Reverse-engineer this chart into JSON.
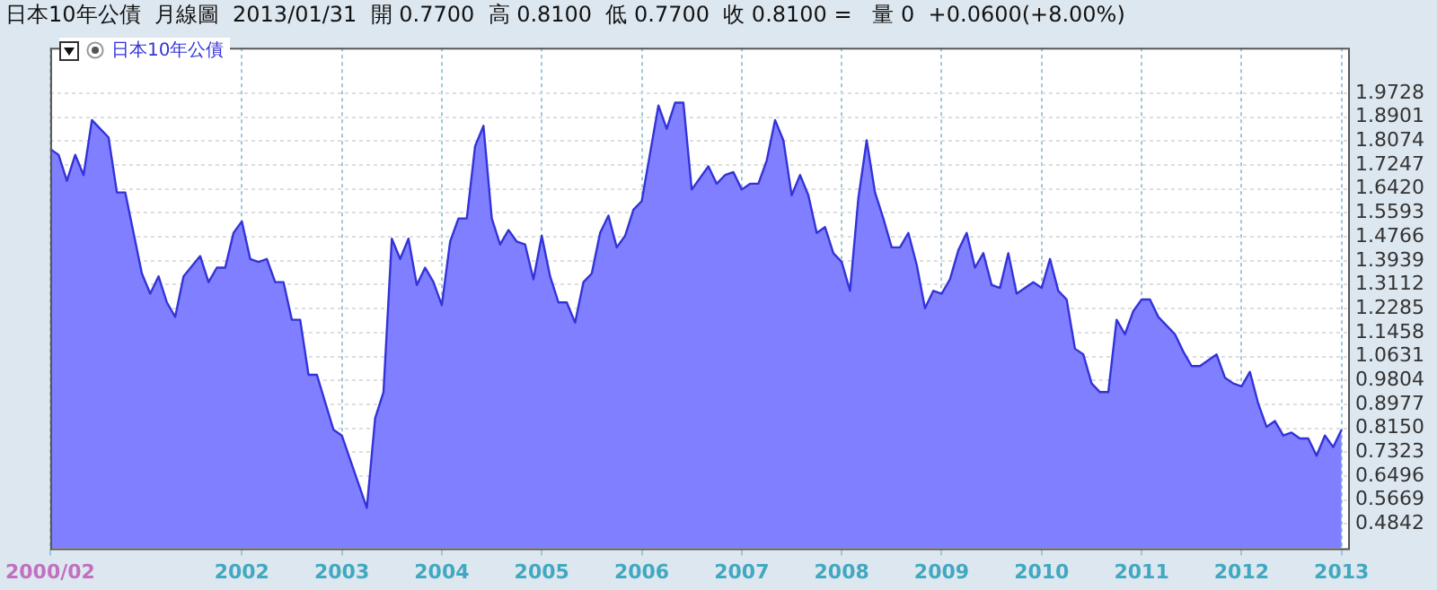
{
  "chart_data": {
    "type": "area",
    "title": "日本10年公債  月線圖  2013/01/31  開 0.7700  高 0.8100  低 0.7700  收 0.8100 =   量 0  +0.0600(+8.00%)",
    "x": [
      "2000-02",
      "2000-03",
      "2000-04",
      "2000-05",
      "2000-06",
      "2000-07",
      "2000-08",
      "2000-09",
      "2000-10",
      "2000-11",
      "2001-01",
      "2001-02",
      "2001-03",
      "2001-04",
      "2001-05",
      "2001-06",
      "2001-08",
      "2001-09",
      "2001-10",
      "2001-11",
      "2001-12",
      "2002-01",
      "2002-02",
      "2002-03",
      "2002-04",
      "2002-05",
      "2002-06",
      "2002-07",
      "2002-08",
      "2002-09",
      "2002-10",
      "2002-12",
      "2003-01",
      "2003-04",
      "2003-05",
      "2003-06",
      "2003-07",
      "2003-08",
      "2003-09",
      "2003-10",
      "2003-11",
      "2003-12",
      "2004-01",
      "2004-02",
      "2004-03",
      "2004-04",
      "2004-05",
      "2004-06",
      "2004-07",
      "2004-08",
      "2004-09",
      "2004-10",
      "2004-11",
      "2004-12",
      "2005-01",
      "2005-02",
      "2005-03",
      "2005-04",
      "2005-05",
      "2005-06",
      "2005-07",
      "2005-08",
      "2005-09",
      "2005-10",
      "2005-11",
      "2005-12",
      "2006-01",
      "2006-03",
      "2006-04",
      "2006-05",
      "2006-06",
      "2006-07",
      "2006-09",
      "2006-10",
      "2006-11",
      "2006-12",
      "2007-01",
      "2007-02",
      "2007-03",
      "2007-04",
      "2007-05",
      "2007-06",
      "2007-07",
      "2007-08",
      "2007-09",
      "2007-10",
      "2007-11",
      "2007-12",
      "2008-01",
      "2008-02",
      "2008-03",
      "2008-04",
      "2008-05",
      "2008-06",
      "2008-07",
      "2008-08",
      "2008-09",
      "2008-10",
      "2008-11",
      "2008-12",
      "2009-01",
      "2009-02",
      "2009-03",
      "2009-04",
      "2009-05",
      "2009-06",
      "2009-07",
      "2009-08",
      "2009-09",
      "2009-10",
      "2009-12",
      "2010-01",
      "2010-02",
      "2010-03",
      "2010-04",
      "2010-05",
      "2010-06",
      "2010-07",
      "2010-08",
      "2010-09",
      "2010-10",
      "2010-11",
      "2010-12",
      "2011-01",
      "2011-02",
      "2011-03",
      "2011-04",
      "2011-05",
      "2011-06",
      "2011-07",
      "2011-08",
      "2011-09",
      "2011-10",
      "2011-11",
      "2011-12",
      "2012-01",
      "2012-02",
      "2012-03",
      "2012-04",
      "2012-05",
      "2012-06",
      "2012-07",
      "2012-08",
      "2012-09",
      "2012-10",
      "2012-11",
      "2012-12",
      "2013-01"
    ],
    "series": [
      {
        "name": "日本10年公債",
        "color": "#7f7fff",
        "values": [
          1.78,
          1.76,
          1.67,
          1.76,
          1.69,
          1.88,
          1.85,
          1.82,
          1.63,
          1.63,
          1.35,
          1.28,
          1.34,
          1.25,
          1.2,
          1.34,
          1.41,
          1.32,
          1.37,
          1.37,
          1.49,
          1.53,
          1.4,
          1.39,
          1.4,
          1.32,
          1.32,
          1.19,
          1.19,
          1.0,
          1.0,
          0.81,
          0.79,
          0.54,
          0.85,
          0.94,
          1.47,
          1.4,
          1.47,
          1.31,
          1.37,
          1.32,
          1.24,
          1.46,
          1.54,
          1.54,
          1.79,
          1.86,
          1.54,
          1.45,
          1.5,
          1.46,
          1.45,
          1.33,
          1.48,
          1.34,
          1.25,
          1.25,
          1.18,
          1.32,
          1.35,
          1.49,
          1.55,
          1.44,
          1.48,
          1.57,
          1.6,
          1.93,
          1.85,
          1.94,
          1.94,
          1.64,
          1.72,
          1.66,
          1.69,
          1.7,
          1.64,
          1.66,
          1.66,
          1.74,
          1.88,
          1.81,
          1.62,
          1.69,
          1.62,
          1.49,
          1.51,
          1.42,
          1.39,
          1.29,
          1.61,
          1.81,
          1.63,
          1.54,
          1.44,
          1.44,
          1.49,
          1.38,
          1.23,
          1.29,
          1.28,
          1.33,
          1.43,
          1.49,
          1.37,
          1.42,
          1.31,
          1.3,
          1.42,
          1.28,
          1.32,
          1.3,
          1.4,
          1.29,
          1.26,
          1.09,
          1.07,
          0.97,
          0.94,
          0.94,
          1.19,
          1.14,
          1.22,
          1.26,
          1.26,
          1.2,
          1.17,
          1.14,
          1.08,
          1.03,
          1.03,
          1.05,
          1.07,
          0.99,
          0.97,
          0.96,
          1.01,
          0.9,
          0.82,
          0.84,
          0.79,
          0.8,
          0.78,
          0.78,
          0.72,
          0.79,
          0.75,
          0.81
        ]
      }
    ],
    "xlim": [
      "2000-02",
      "2013-02"
    ],
    "xticks": [
      {
        "value": "2000-02",
        "label": "2000/02"
      },
      {
        "value": "2002-01",
        "label": "2002"
      },
      {
        "value": "2003-01",
        "label": "2003"
      },
      {
        "value": "2004-01",
        "label": "2004"
      },
      {
        "value": "2005-01",
        "label": "2005"
      },
      {
        "value": "2006-01",
        "label": "2006"
      },
      {
        "value": "2007-01",
        "label": "2007"
      },
      {
        "value": "2008-01",
        "label": "2008"
      },
      {
        "value": "2009-01",
        "label": "2009"
      },
      {
        "value": "2010-01",
        "label": "2010"
      },
      {
        "value": "2011-01",
        "label": "2011"
      },
      {
        "value": "2012-01",
        "label": "2012"
      },
      {
        "value": "2013-01",
        "label": "2013"
      }
    ],
    "ylim": [
      0.4,
      2.13
    ],
    "yticks": [
      0.4842,
      0.5669,
      0.6496,
      0.7323,
      {
        "value": 0.815,
        "label": "0.8150"
      },
      0.8977,
      0.9804,
      1.0631,
      1.1458,
      1.2285,
      1.3112,
      1.3939,
      1.4766,
      1.5593,
      {
        "value": 1.642,
        "label": "1.6420"
      },
      1.7247,
      1.8074,
      1.8901,
      1.9728
    ],
    "grid": true,
    "legend": "top left"
  }
}
